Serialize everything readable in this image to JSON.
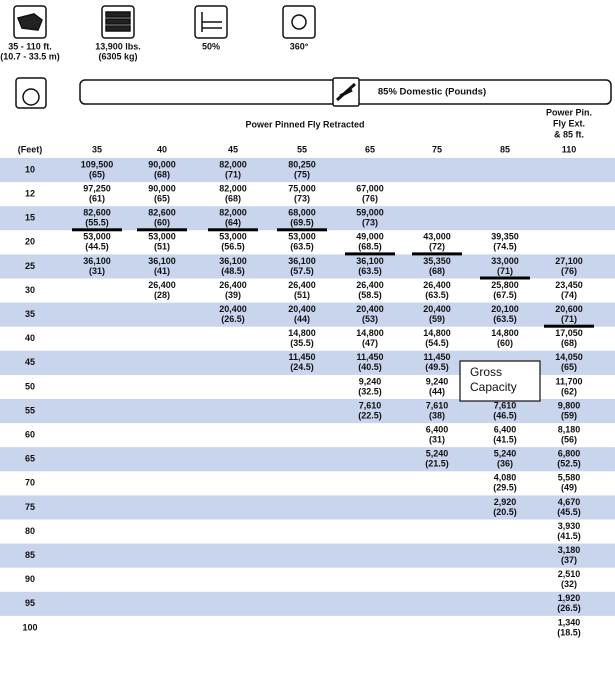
{
  "specs": [
    {
      "lines": [
        "35 - 110 ft.",
        "(10.7 - 33.5 m)"
      ]
    },
    {
      "lines": [
        "13,900 lbs.",
        "(6305 kg)"
      ]
    },
    {
      "lines": [
        "50%"
      ]
    },
    {
      "lines": [
        "360°"
      ]
    }
  ],
  "banner": "85% Domestic (Pounds)",
  "table": {
    "group_header": "Power Pinned Fly Retracted",
    "ext_header": [
      "Power Pin.",
      "Fly Ext.",
      "& 85 ft."
    ],
    "radius_header": "(Feet)",
    "columns": [
      "35",
      "40",
      "45",
      "55",
      "65",
      "75",
      "85",
      "110"
    ],
    "rows": [
      {
        "radius": "10",
        "cells": [
          [
            "109,500",
            "(65)"
          ],
          [
            "90,000",
            "(68)"
          ],
          [
            "82,000",
            "(71)"
          ],
          [
            "80,250",
            "(75)"
          ],
          null,
          null,
          null,
          null
        ]
      },
      {
        "radius": "12",
        "cells": [
          [
            "97,250",
            "(61)"
          ],
          [
            "90,000",
            "(65)"
          ],
          [
            "82,000",
            "(68)"
          ],
          [
            "75,000",
            "(73)"
          ],
          [
            "67,000",
            "(76)"
          ],
          null,
          null,
          null
        ]
      },
      {
        "radius": "15",
        "cells": [
          [
            "82,600",
            "(55.5)"
          ],
          [
            "82,600",
            "(60)"
          ],
          [
            "82,000",
            "(64)"
          ],
          [
            "68,000",
            "(69.5)"
          ],
          [
            "59,000",
            "(73)"
          ],
          null,
          null,
          null
        ]
      },
      {
        "radius": "20",
        "cells": [
          [
            "53,000",
            "(44.5)"
          ],
          [
            "53,000",
            "(51)"
          ],
          [
            "53,000",
            "(56.5)"
          ],
          [
            "53,000",
            "(63.5)"
          ],
          [
            "49,000",
            "(68.5)"
          ],
          [
            "43,000",
            "(72)"
          ],
          [
            "39,350",
            "(74.5)"
          ],
          null
        ]
      },
      {
        "radius": "25",
        "cells": [
          [
            "36,100",
            "(31)"
          ],
          [
            "36,100",
            "(41)"
          ],
          [
            "36,100",
            "(48.5)"
          ],
          [
            "36,100",
            "(57.5)"
          ],
          [
            "36,100",
            "(63.5)"
          ],
          [
            "35,350",
            "(68)"
          ],
          [
            "33,000",
            "(71)"
          ],
          [
            "27,100",
            "(76)"
          ]
        ]
      },
      {
        "radius": "30",
        "cells": [
          null,
          [
            "26,400",
            "(28)"
          ],
          [
            "26,400",
            "(39)"
          ],
          [
            "26,400",
            "(51)"
          ],
          [
            "26,400",
            "(58.5)"
          ],
          [
            "26,400",
            "(63.5)"
          ],
          [
            "25,800",
            "(67.5)"
          ],
          [
            "23,450",
            "(74)"
          ]
        ]
      },
      {
        "radius": "35",
        "cells": [
          null,
          null,
          [
            "20,400",
            "(26.5)"
          ],
          [
            "20,400",
            "(44)"
          ],
          [
            "20,400",
            "(53)"
          ],
          [
            "20,400",
            "(59)"
          ],
          [
            "20,100",
            "(63.5)"
          ],
          [
            "20,600",
            "(71)"
          ]
        ]
      },
      {
        "radius": "40",
        "cells": [
          null,
          null,
          null,
          [
            "14,800",
            "(35.5)"
          ],
          [
            "14,800",
            "(47)"
          ],
          [
            "14,800",
            "(54.5)"
          ],
          [
            "14,800",
            "(60)"
          ],
          [
            "17,050",
            "(68)"
          ]
        ]
      },
      {
        "radius": "45",
        "cells": [
          null,
          null,
          null,
          [
            "11,450",
            "(24.5)"
          ],
          [
            "11,450",
            "(40.5)"
          ],
          [
            "11,450",
            "(49.5)"
          ],
          null,
          [
            "14,050",
            "(65)"
          ]
        ]
      },
      {
        "radius": "50",
        "cells": [
          null,
          null,
          null,
          null,
          [
            "9,240",
            "(32.5)"
          ],
          [
            "9,240",
            "(44)"
          ],
          null,
          [
            "11,700",
            "(62)"
          ]
        ]
      },
      {
        "radius": "55",
        "cells": [
          null,
          null,
          null,
          null,
          [
            "7,610",
            "(22.5)"
          ],
          [
            "7,610",
            "(38)"
          ],
          [
            "7,610",
            "(46.5)"
          ],
          [
            "9,800",
            "(59)"
          ]
        ]
      },
      {
        "radius": "60",
        "cells": [
          null,
          null,
          null,
          null,
          null,
          [
            "6,400",
            "(31)"
          ],
          [
            "6,400",
            "(41.5)"
          ],
          [
            "8,180",
            "(56)"
          ]
        ]
      },
      {
        "radius": "65",
        "cells": [
          null,
          null,
          null,
          null,
          null,
          [
            "5,240",
            "(21.5)"
          ],
          [
            "5,240",
            "(36)"
          ],
          [
            "6,800",
            "(52.5)"
          ]
        ]
      },
      {
        "radius": "70",
        "cells": [
          null,
          null,
          null,
          null,
          null,
          null,
          [
            "4,080",
            "(29.5)"
          ],
          [
            "5,580",
            "(49)"
          ]
        ]
      },
      {
        "radius": "75",
        "cells": [
          null,
          null,
          null,
          null,
          null,
          null,
          [
            "2,920",
            "(20.5)"
          ],
          [
            "4,670",
            "(45.5)"
          ]
        ]
      },
      {
        "radius": "80",
        "cells": [
          null,
          null,
          null,
          null,
          null,
          null,
          null,
          [
            "3,930",
            "(41.5)"
          ]
        ]
      },
      {
        "radius": "85",
        "cells": [
          null,
          null,
          null,
          null,
          null,
          null,
          null,
          [
            "3,180",
            "(37)"
          ]
        ]
      },
      {
        "radius": "90",
        "cells": [
          null,
          null,
          null,
          null,
          null,
          null,
          null,
          [
            "2,510",
            "(32)"
          ]
        ]
      },
      {
        "radius": "95",
        "cells": [
          null,
          null,
          null,
          null,
          null,
          null,
          null,
          [
            "1,920",
            "(26.5)"
          ]
        ]
      },
      {
        "radius": "100",
        "cells": [
          null,
          null,
          null,
          null,
          null,
          null,
          null,
          [
            "1,340",
            "(18.5)"
          ]
        ]
      }
    ]
  },
  "callout": [
    "Gross",
    "Capacity"
  ]
}
